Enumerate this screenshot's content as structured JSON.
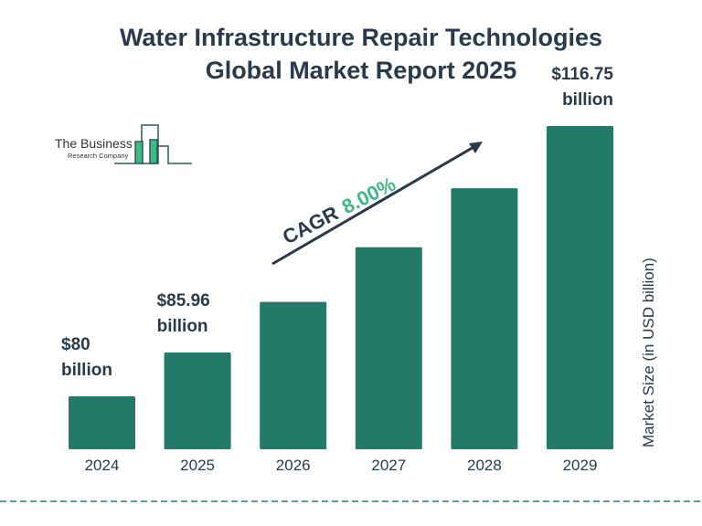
{
  "logo": {
    "line1": "The Business",
    "line2": "Research Company"
  },
  "chart_data": {
    "type": "bar",
    "title": "Water Infrastructure Repair Technologies Global Market Report 2025",
    "title_line1": "Water Infrastructure Repair Technologies",
    "title_line2": "Global Market Report 2025",
    "categories": [
      "2024",
      "2025",
      "2026",
      "2027",
      "2028",
      "2029"
    ],
    "values": [
      80,
      85.96,
      92.84,
      100.27,
      108.29,
      116.75
    ],
    "data_labels": [
      {
        "value": "$80",
        "unit": "billion"
      },
      {
        "value": "$85.96",
        "unit": "billion"
      },
      null,
      null,
      null,
      {
        "value": "$116.75",
        "unit": "billion"
      }
    ],
    "ylabel": "Market Size (in USD billion)",
    "xlabel": "",
    "annotation": {
      "label": "CAGR",
      "value": "8.00%"
    },
    "grid": false,
    "colors": {
      "bar": "#237a69",
      "text": "#2a3a4b",
      "accent": "#3fb885"
    }
  }
}
